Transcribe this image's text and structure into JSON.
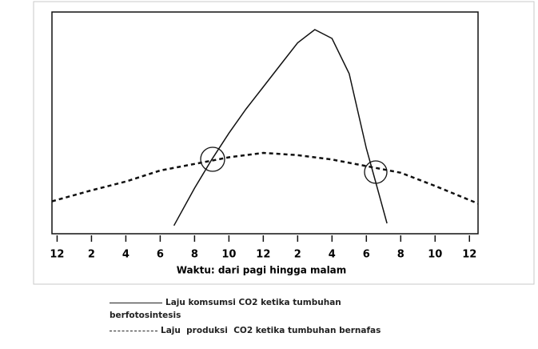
{
  "chart_data": {
    "type": "line",
    "xlabel": "Waktu: dari pagi hingga malam",
    "xlim": [
      -0.3,
      24.5
    ],
    "xticks": [
      {
        "value": 0,
        "label": "12"
      },
      2,
      4,
      6,
      8,
      10,
      {
        "value": 12,
        "label": "12"
      },
      {
        "value": 14,
        "label": "2"
      },
      {
        "value": 16,
        "label": "4"
      },
      {
        "value": 18,
        "label": "6"
      },
      {
        "value": 20,
        "label": "8"
      },
      {
        "value": 22,
        "label": "10"
      },
      {
        "value": 24,
        "label": "12"
      }
    ],
    "ylim": [
      0,
      100
    ],
    "series": [
      {
        "name": "Laju komsumsi CO2 ketika tumbuhan berfotosintesis",
        "color": "#111111",
        "dashed": false,
        "x": [
          6.8,
          8,
          9,
          10,
          11,
          12,
          13,
          14,
          15,
          16,
          17,
          18,
          18.5,
          19.2
        ],
        "values": [
          3,
          20,
          33,
          45,
          56,
          66,
          76,
          86,
          92,
          88,
          72,
          38,
          24,
          4
        ]
      },
      {
        "name": "Laju  produksi  CO2 ketika tumbuhan bernafas",
        "color": "#111111",
        "dashed": true,
        "x": [
          -0.3,
          2,
          4,
          6,
          8,
          10,
          12,
          14,
          16,
          18,
          20,
          22,
          24.5
        ],
        "values": [
          14,
          19,
          23,
          28,
          31,
          34,
          36,
          35,
          33,
          30,
          27,
          21,
          13
        ]
      }
    ]
  }
}
